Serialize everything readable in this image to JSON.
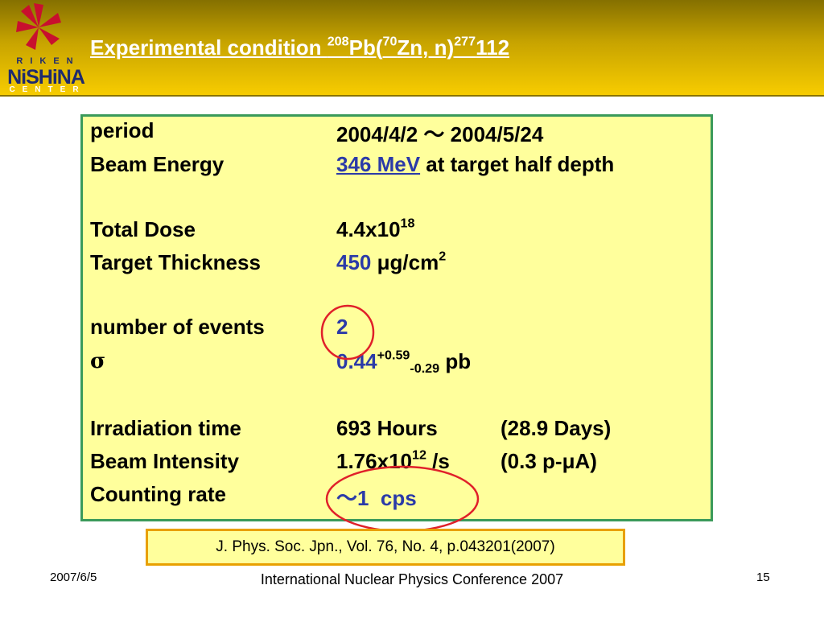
{
  "header": {
    "title": [
      "Experimental condition ",
      "208",
      "Pb(",
      "70",
      "Zn, n)",
      "277",
      "112"
    ],
    "logo": {
      "top": "RIKEN",
      "name": "NiSHiNA",
      "bottom": "CENTER"
    }
  },
  "conditions": [
    {
      "label": "period",
      "value": [
        "2004/4/2 〜 2004/5/24"
      ]
    },
    {
      "label": "Beam Energy",
      "value": [
        "346 MeV",
        " at target half depth"
      ]
    },
    {
      "label": "Total Dose",
      "value": [
        "4.4x10",
        "18"
      ]
    },
    {
      "label": "Target Thickness",
      "value": [
        "450",
        " μg/cm",
        "2"
      ]
    },
    {
      "label": "number of events",
      "value": [
        "2"
      ]
    },
    {
      "label": "σ",
      "value": [
        "0.44",
        "+0.59",
        "-0.29",
        " pb"
      ]
    },
    {
      "label": "Irradiation time",
      "value": [
        "693 Hours",
        "(28.9 Days)"
      ]
    },
    {
      "label": "Beam Intensity",
      "value": [
        "1.76x10",
        "12",
        " /s",
        "(0.3 p-μA)"
      ]
    },
    {
      "label": "Counting rate",
      "value": [
        "〜1  cps"
      ]
    }
  ],
  "citation": "J. Phys. Soc. Jpn., Vol. 76, No. 4, p.043201(2007)",
  "footer": {
    "date": "2007/6/5",
    "conference": "International Nuclear Physics Conference 2007",
    "page": "15"
  }
}
